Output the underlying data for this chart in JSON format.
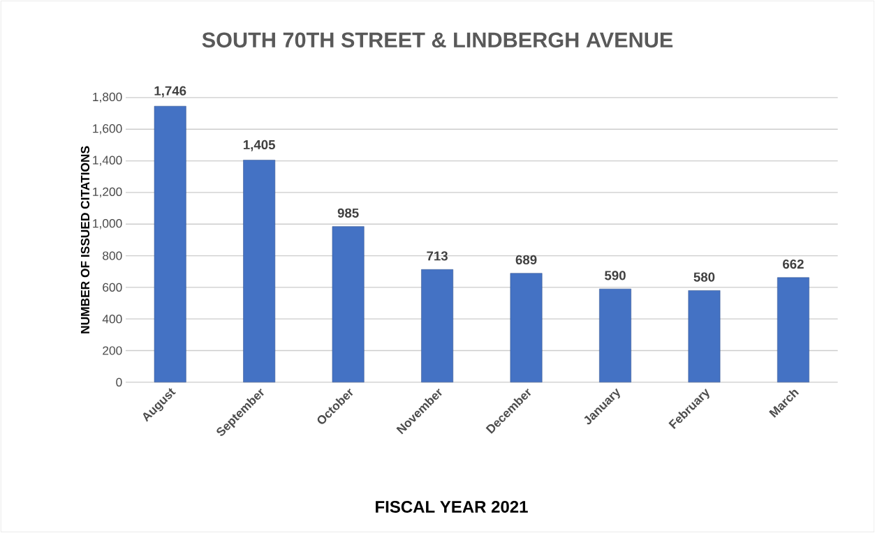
{
  "chart_data": {
    "type": "bar",
    "title": "SOUTH 70TH STREET & LINDBERGH AVENUE",
    "xlabel": "FISCAL YEAR 2021",
    "ylabel": "NUMBER OF ISSUED CITATIONS",
    "categories": [
      "August",
      "September",
      "October",
      "November",
      "December",
      "January",
      "February",
      "March"
    ],
    "values": [
      1746,
      1405,
      985,
      713,
      689,
      590,
      580,
      662
    ],
    "value_labels": [
      "1,746",
      "1,405",
      "985",
      "713",
      "689",
      "590",
      "580",
      "662"
    ],
    "color": "#4472c4",
    "ylim": [
      0,
      1800
    ],
    "yticks": [
      0,
      200,
      400,
      600,
      800,
      {
        "value": 1000,
        "label": "1,000"
      },
      {
        "value": 1200,
        "label": "1,200"
      },
      {
        "value": 1400,
        "label": "1,400"
      },
      {
        "value": 1600,
        "label": "1,600"
      },
      {
        "value": 1800,
        "label": "1,800"
      }
    ],
    "grid": "y"
  }
}
